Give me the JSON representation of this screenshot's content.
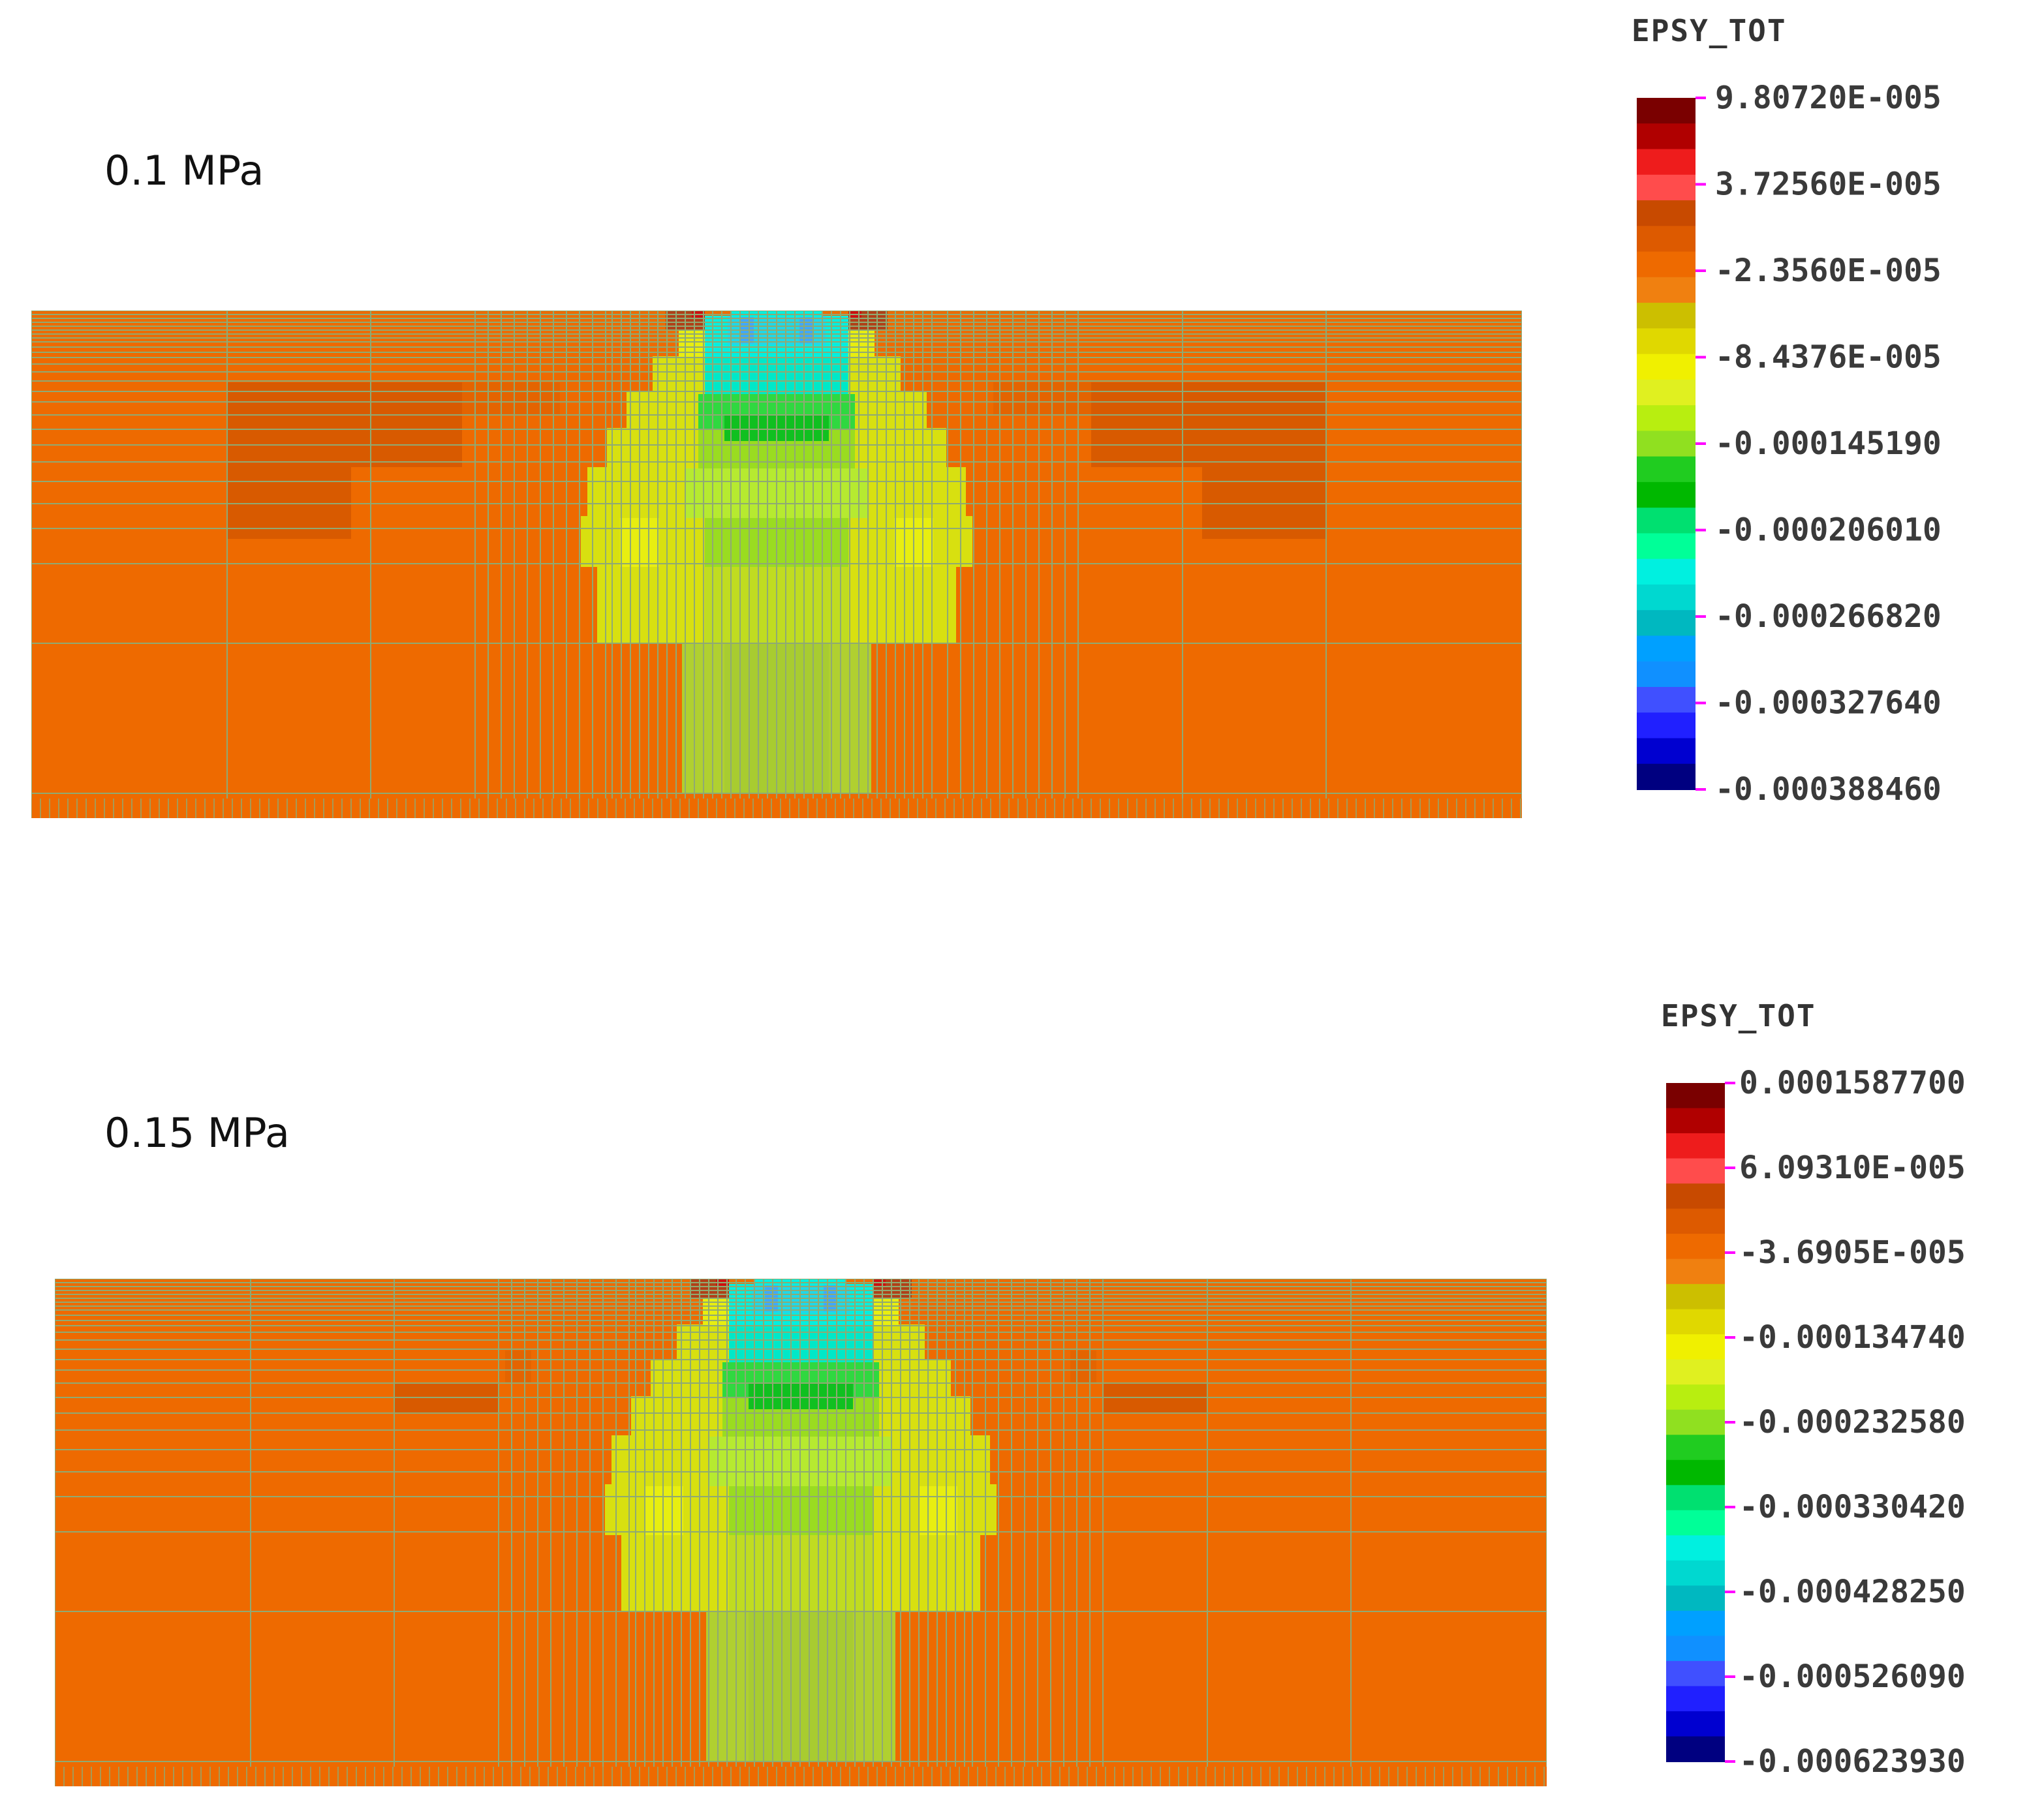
{
  "panels": [
    {
      "title": "0.1 MPa",
      "legend": {
        "title": "EPSY_TOT",
        "ticks": [
          "9.80720E-005",
          "3.72560E-005",
          "-2.3560E-005",
          "-8.4376E-005",
          "-0.000145190",
          "-0.000206010",
          "-0.000266820",
          "-0.000327640",
          "-0.000388460"
        ]
      }
    },
    {
      "title": "0.15 MPa",
      "legend": {
        "title": "EPSY_TOT",
        "ticks": [
          "0.0001587700",
          "6.09310E-005",
          "-3.6905E-005",
          "-0.000134740",
          "-0.000232580",
          "-0.000330420",
          "-0.000428250",
          "-0.000526090",
          "-0.000623930"
        ]
      }
    }
  ],
  "colors": {
    "background_field": "#ee6a00",
    "mesh_line": "#8faa73",
    "scale": [
      "#7a0000",
      "#b00000",
      "#ee1c1c",
      "#ff4c4c",
      "#c84a00",
      "#dd5a00",
      "#ee6a00",
      "#f08010",
      "#ccbf00",
      "#e0d800",
      "#f0f000",
      "#e0f020",
      "#b8ee10",
      "#90e020",
      "#20cc20",
      "#00b800",
      "#00e070",
      "#00ff98",
      "#00f0e0",
      "#00d8d0",
      "#00b8c0",
      "#00a0ff",
      "#1090ff",
      "#4050ff",
      "#2020ff",
      "#0000d0",
      "#000080"
    ],
    "tick_marker": "#ff00ff"
  }
}
